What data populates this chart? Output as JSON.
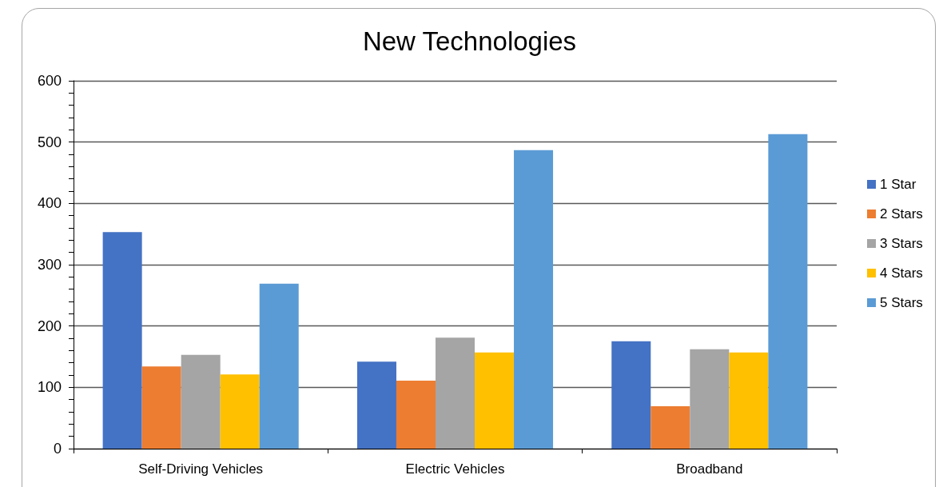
{
  "chart_data": {
    "type": "bar",
    "title": "New Technologies",
    "categories": [
      "Self-Driving Vehicles",
      "Electric Vehicles",
      "Broadband"
    ],
    "series": [
      {
        "name": "1 Star",
        "color": "#4472c4",
        "values": [
          353,
          142,
          175
        ]
      },
      {
        "name": "2 Stars",
        "color": "#ed7d31",
        "values": [
          134,
          111,
          69
        ]
      },
      {
        "name": "3 Stars",
        "color": "#a5a5a5",
        "values": [
          153,
          181,
          162
        ]
      },
      {
        "name": "4 Stars",
        "color": "#ffc000",
        "values": [
          121,
          157,
          157
        ]
      },
      {
        "name": "5 Stars",
        "color": "#5b9bd5",
        "values": [
          269,
          487,
          513
        ]
      }
    ],
    "ylim": [
      0,
      600
    ],
    "yticks": [
      0,
      {
        "value": 20,
        "label": null
      },
      {
        "value": 40,
        "label": null
      },
      {
        "value": 60,
        "label": null
      },
      {
        "value": 80,
        "label": null
      },
      100,
      {
        "value": 120,
        "label": null
      },
      {
        "value": 140,
        "label": null
      },
      {
        "value": 160,
        "label": null
      },
      {
        "value": 180,
        "label": null
      },
      200,
      {
        "value": 220,
        "label": null
      },
      {
        "value": 240,
        "label": null
      },
      {
        "value": 260,
        "label": null
      },
      {
        "value": 280,
        "label": null
      },
      300,
      {
        "value": 320,
        "label": null
      },
      {
        "value": 340,
        "label": null
      },
      {
        "value": 360,
        "label": null
      },
      {
        "value": 380,
        "label": null
      },
      400,
      {
        "value": 420,
        "label": null
      },
      {
        "value": 440,
        "label": null
      },
      {
        "value": 460,
        "label": null
      },
      {
        "value": 480,
        "label": null
      },
      500,
      {
        "value": 520,
        "label": null
      },
      {
        "value": 540,
        "label": null
      },
      {
        "value": 560,
        "label": null
      },
      {
        "value": 580,
        "label": null
      },
      600
    ],
    "grid": "y",
    "legend": "right"
  }
}
